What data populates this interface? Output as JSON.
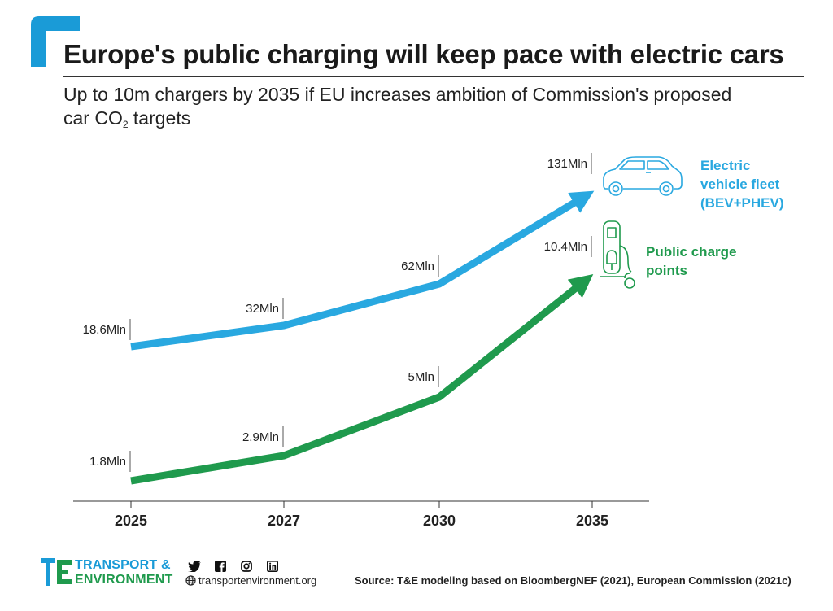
{
  "header": {
    "title": "Europe's public charging will keep pace with electric cars",
    "subtitle_line1": "Up to 10m chargers by 2035 if EU increases ambition of Commission's proposed",
    "subtitle_line2_pre": "car CO",
    "subtitle_line2_sub": "2",
    "subtitle_line2_post": " targets"
  },
  "chart_data": {
    "type": "line",
    "title": "Europe's public charging will keep pace with electric cars",
    "categories": [
      "2025",
      "2027",
      "2030",
      "2035"
    ],
    "series": [
      {
        "name": "Electric vehicle fleet (BEV+PHEV)",
        "name_lines": [
          "Electric",
          "vehicle fleet",
          "(BEV+PHEV)"
        ],
        "values": [
          18.6,
          32,
          62,
          131
        ],
        "labels": [
          "18.6Mln",
          "32Mln",
          "62Mln",
          "131Mln"
        ],
        "color": "#29a8e0"
      },
      {
        "name": "Public charge points",
        "name_lines": [
          "Public charge",
          "points"
        ],
        "values": [
          1.8,
          2.9,
          5,
          10.4
        ],
        "labels": [
          "1.8Mln",
          "2.9Mln",
          "5Mln",
          "10.4Mln"
        ],
        "color": "#1f9a4d"
      }
    ],
    "grid": false,
    "legend": "right of line ends"
  },
  "footer": {
    "brand_line1": "TRANSPORT &",
    "brand_line2": "ENVIRONMENT",
    "website": "transportenvironment.org",
    "source": "Source: T&E modeling based on BloombergNEF (2021), European Commission (2021c)",
    "social_icons": [
      "twitter-icon",
      "facebook-icon",
      "instagram-icon",
      "linkedin-icon"
    ]
  },
  "colors": {
    "accent_blue": "#1a9bd7",
    "accent_green": "#1f9a4d"
  }
}
